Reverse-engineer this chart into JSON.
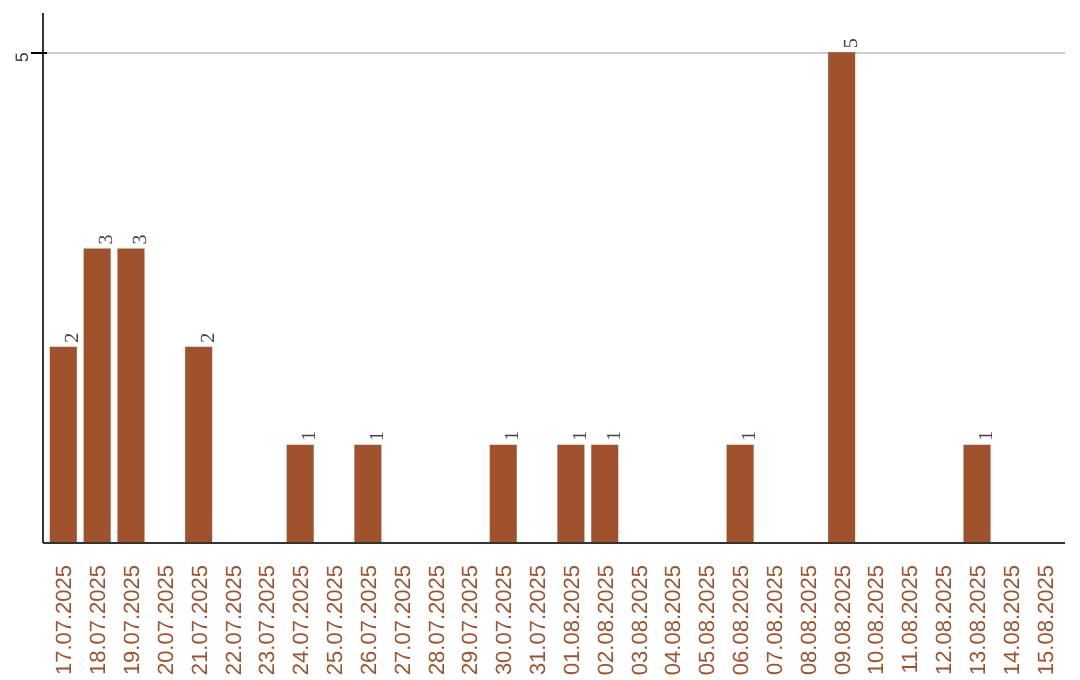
{
  "chart_data": {
    "type": "bar",
    "categories": [
      "17.07.2025",
      "18.07.2025",
      "19.07.2025",
      "20.07.2025",
      "21.07.2025",
      "22.07.2025",
      "23.07.2025",
      "24.07.2025",
      "25.07.2025",
      "26.07.2025",
      "27.07.2025",
      "28.07.2025",
      "29.07.2025",
      "30.07.2025",
      "31.07.2025",
      "01.08.2025",
      "02.08.2025",
      "03.08.2025",
      "04.08.2025",
      "05.08.2025",
      "06.08.2025",
      "07.08.2025",
      "08.08.2025",
      "09.08.2025",
      "10.08.2025",
      "11.08.2025",
      "12.08.2025",
      "13.08.2025",
      "14.08.2025",
      "15.08.2025"
    ],
    "values": [
      2,
      3,
      3,
      0,
      2,
      0,
      0,
      1,
      0,
      1,
      0,
      0,
      0,
      1,
      0,
      1,
      1,
      0,
      0,
      0,
      1,
      0,
      0,
      5,
      0,
      0,
      0,
      1,
      0,
      0
    ],
    "value_labels": [
      "2",
      "3",
      "3",
      null,
      "2",
      null,
      null,
      "1",
      null,
      "1",
      null,
      null,
      null,
      "1",
      null,
      "1",
      "1",
      null,
      null,
      null,
      "1",
      null,
      null,
      "5",
      null,
      null,
      null,
      "1",
      null,
      null
    ],
    "color": "#a0522d",
    "ylim": [
      0,
      5.4
    ],
    "yticks": [
      5
    ],
    "grid": "y"
  }
}
